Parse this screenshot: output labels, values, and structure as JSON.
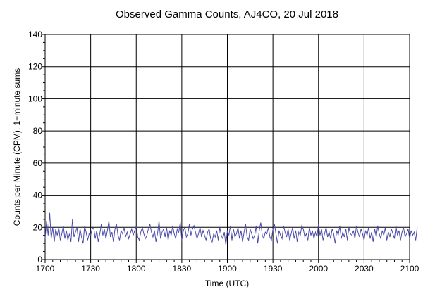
{
  "chart_data": {
    "type": "line",
    "title": "Observed Gamma Counts, AJ4CO, 20 Jul 2018",
    "xlabel": "Time (UTC)",
    "ylabel": "Counts per Minute (CPM), 1−minute sums",
    "x_tick_labels": [
      "1700",
      "1730",
      "1800",
      "1830",
      "1900",
      "1930",
      "2000",
      "2030",
      "2100"
    ],
    "y_tick_labels": [
      "0",
      "20",
      "40",
      "60",
      "80",
      "100",
      "120",
      "140"
    ],
    "xlim": [
      "17:00",
      "21:00"
    ],
    "ylim": [
      0,
      140
    ],
    "grid": true,
    "line_color": "#4a4aa8",
    "series": [
      {
        "x_start": "17:00",
        "x_step_minutes": 1,
        "values": [
          13,
          24,
          15,
          29,
          13,
          20,
          11,
          19,
          15,
          20,
          12,
          16,
          21,
          13,
          18,
          12,
          16,
          11,
          25,
          14,
          17,
          20,
          11,
          19,
          14,
          10,
          21,
          17,
          12,
          16,
          15,
          19,
          20,
          13,
          18,
          11,
          16,
          22,
          15,
          19,
          13,
          18,
          24,
          14,
          17,
          11,
          19,
          22,
          15,
          12,
          18,
          16,
          20,
          14,
          17,
          13,
          16,
          19,
          15,
          18,
          21,
          14,
          12,
          17,
          20,
          16,
          13,
          15,
          19,
          22,
          17,
          14,
          18,
          11,
          16,
          24,
          13,
          17,
          19,
          14,
          20,
          12,
          18,
          15,
          21,
          16,
          13,
          19,
          17,
          23,
          12,
          18,
          20,
          14,
          16,
          22,
          15,
          19,
          21,
          17,
          13,
          16,
          20,
          14,
          18,
          15,
          12,
          17,
          19,
          13,
          11,
          16,
          14,
          18,
          12,
          20,
          15,
          13,
          17,
          9,
          18,
          15,
          21,
          12,
          19,
          14,
          16,
          20,
          13,
          18,
          11,
          17,
          22,
          14,
          12,
          19,
          16,
          13,
          15,
          21,
          10,
          18,
          23,
          15,
          13,
          17,
          16,
          20,
          14,
          12,
          19,
          22,
          16,
          10,
          18,
          15,
          13,
          21,
          17,
          14,
          19,
          12,
          16,
          20,
          13,
          18,
          11,
          17,
          15,
          21,
          19,
          14,
          16,
          12,
          20,
          15,
          18,
          13,
          17,
          14,
          22,
          15,
          19,
          12,
          16,
          20,
          14,
          17,
          13,
          19,
          16,
          10,
          18,
          15,
          21,
          13,
          17,
          14,
          19,
          12,
          20,
          16,
          15,
          18,
          13,
          21,
          17,
          14,
          19,
          16,
          12,
          18,
          15,
          20,
          13,
          17,
          11,
          19,
          14,
          21,
          16,
          13,
          18,
          15,
          20,
          12,
          17,
          14,
          19,
          16,
          13,
          21,
          15,
          18,
          12,
          17,
          20,
          14,
          16,
          19,
          13,
          18,
          15,
          17,
          12,
          20
        ]
      }
    ]
  }
}
